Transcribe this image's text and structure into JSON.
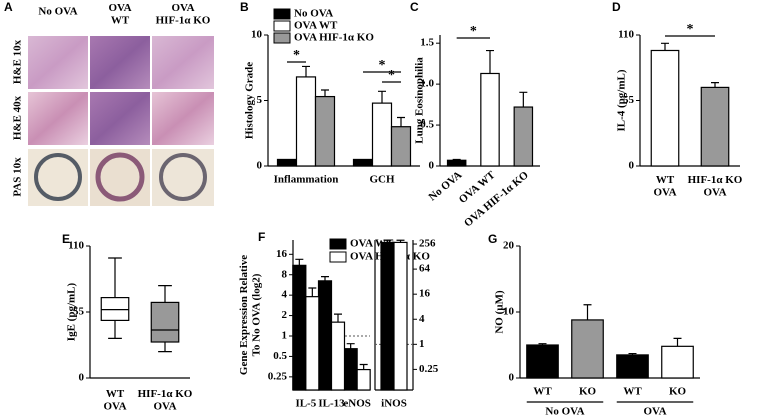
{
  "panel_a": {
    "label": "A",
    "columns": [
      "No OVA",
      "OVA\nWT",
      "OVA\nHIF-1α KO"
    ],
    "rows": [
      "H&E 10x",
      "H&E 40x",
      "PAS 10x"
    ]
  },
  "chart_data": [
    {
      "label": "B",
      "type": "bar",
      "ylabel": "Histology Grade",
      "categories": [
        "Inflammation",
        "GCH"
      ],
      "ylim": [
        0,
        10
      ],
      "yticks": [
        0,
        5,
        10
      ],
      "series": [
        {
          "name": "No OVA",
          "color": "#000000",
          "values": [
            0.5,
            0.5
          ]
        },
        {
          "name": "OVA WT",
          "color": "#ffffff",
          "values": [
            6.8,
            4.8
          ],
          "errors": [
            0.8,
            0.9
          ]
        },
        {
          "name": "OVA HIF-1α KO",
          "color": "#999999",
          "values": [
            5.3,
            3.0
          ],
          "errors": [
            0.5,
            0.7
          ]
        }
      ],
      "annotations": [
        "*",
        "*",
        "*"
      ]
    },
    {
      "label": "C",
      "type": "bar",
      "ylabel": "Lung Eosinophilia",
      "categories": [
        "No OVA",
        "OVA WT",
        "OVA HIF-1α KO"
      ],
      "values": [
        0.07,
        1.13,
        0.72
      ],
      "errors": [
        0.01,
        0.28,
        0.18
      ],
      "colors": [
        "#000000",
        "#ffffff",
        "#999999"
      ],
      "ylim": [
        0,
        1.6
      ],
      "yticks": [
        0,
        0.5,
        {
          "value": 1,
          "label": "1.0"
        },
        1.5
      ],
      "annotations": [
        "*"
      ]
    },
    {
      "label": "D",
      "type": "bar",
      "ylabel": "IL-4 (pg/mL)",
      "categories": [
        "WT\nOVA",
        "HIF-1α KO\nOVA"
      ],
      "values": [
        97,
        66
      ],
      "errors": [
        6,
        4
      ],
      "colors": [
        "#ffffff",
        "#999999"
      ],
      "ylim": [
        0,
        110
      ],
      "yticks": [
        0,
        55,
        110
      ],
      "annotations": [
        "*"
      ]
    },
    {
      "label": "E",
      "type": "box",
      "ylabel": "IgE (pg/mL)",
      "categories": [
        "WT\nOVA",
        "HIF-1α KO\nOVA"
      ],
      "min": [
        33,
        22
      ],
      "q1": [
        48,
        30
      ],
      "median": [
        57,
        40
      ],
      "q3": [
        67,
        63
      ],
      "max": [
        100,
        77
      ],
      "colors": [
        "#ffffff",
        "#999999"
      ],
      "ylim": [
        0,
        110
      ],
      "yticks": [
        0,
        55,
        110
      ]
    },
    {
      "label": "F",
      "type": "bar",
      "ylog": true,
      "ylabel": "Gene Expression Relative\nTo No OVA (log2)",
      "categories": [
        "IL-5",
        "IL-13",
        "eNOS",
        "iNOS"
      ],
      "ylim": [
        0.16,
        26
      ],
      "yticks": [
        0.25,
        0.5,
        1,
        2,
        4,
        8,
        16
      ],
      "y2lim": [
        0.08,
        320
      ],
      "y2ticks": [
        0.25,
        1,
        4,
        16,
        64,
        256
      ],
      "hline": 1,
      "series": [
        {
          "name": "OVA WT",
          "color": "#000000",
          "values": [
            11,
            6.5,
            0.65,
            null
          ],
          "errors": [
            2.5,
            1,
            0.12,
            null
          ]
        },
        {
          "name": "OVA HIF-1α KO",
          "color": "#ffffff",
          "values": [
            3.8,
            1.6,
            0.32,
            null
          ],
          "errors": [
            1.3,
            0.5,
            0.06,
            null
          ]
        },
        {
          "name": "OVA WT",
          "color": "#000000",
          "axis": "y2",
          "values": [
            null,
            null,
            null,
            280
          ],
          "errors": [
            null,
            null,
            null,
            35
          ]
        },
        {
          "name": "OVA HIF-1α KO",
          "color": "#ffffff",
          "axis": "y2",
          "values": [
            null,
            null,
            null,
            280
          ],
          "errors": [
            null,
            null,
            null,
            35
          ]
        }
      ]
    },
    {
      "label": "G",
      "type": "bar",
      "ylabel": "NO (µM)",
      "categories": [
        "WT",
        "KO",
        "WT",
        "KO"
      ],
      "groups": [
        "No OVA",
        "OVA"
      ],
      "values": [
        5,
        8.8,
        3.5,
        4.8
      ],
      "errors": [
        0.2,
        2.3,
        0.2,
        1.2
      ],
      "colors": [
        "#000000",
        "#999999",
        "#000000",
        "#ffffff"
      ],
      "ylim": [
        0,
        20
      ],
      "yticks": [
        0,
        10,
        20
      ]
    }
  ]
}
